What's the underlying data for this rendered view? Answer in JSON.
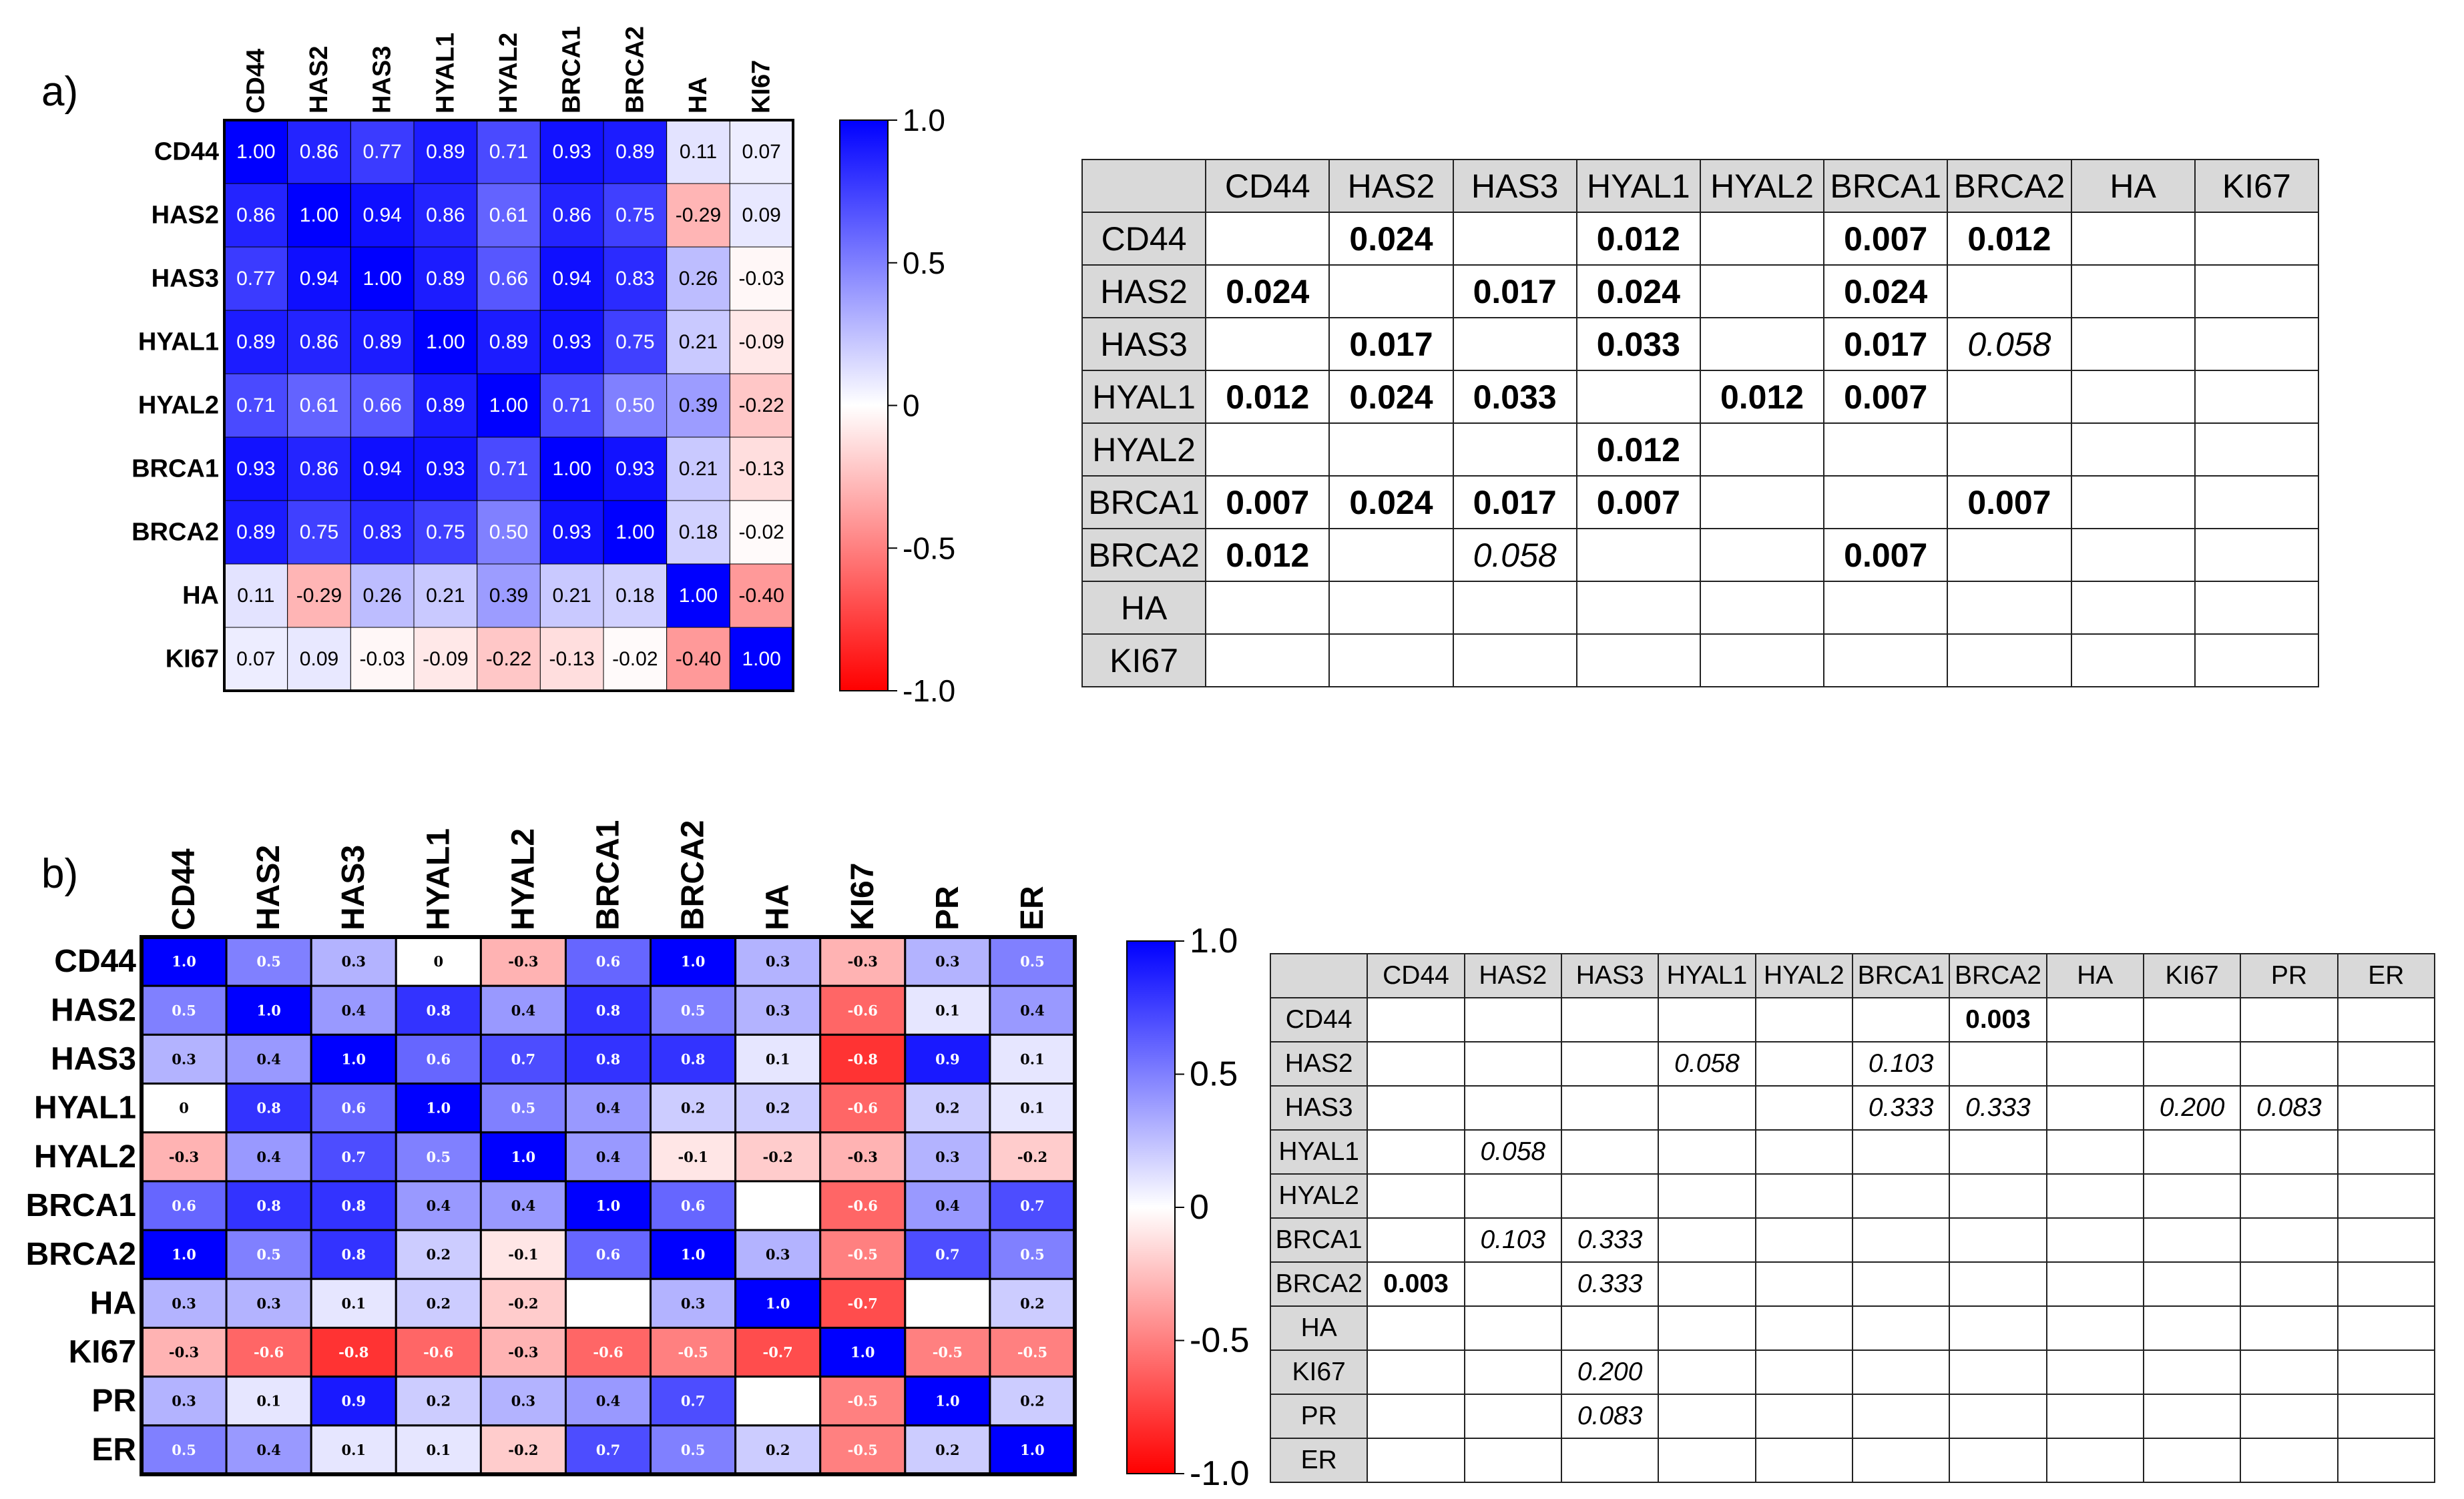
{
  "chart_data": [
    {
      "type": "heatmap",
      "panel_label": "a)",
      "title": "",
      "row_labels": [
        "CD44",
        "HAS2",
        "HAS3",
        "HYAL1",
        "HYAL2",
        "BRCA1",
        "BRCA2",
        "HA",
        "KI67"
      ],
      "col_labels": [
        "CD44",
        "HAS2",
        "HAS3",
        "HYAL1",
        "HYAL2",
        "BRCA1",
        "BRCA2",
        "HA",
        "KI67"
      ],
      "values": [
        [
          "1.00",
          "0.86",
          "0.77",
          "0.89",
          "0.71",
          "0.93",
          "0.89",
          "0.11",
          "0.07"
        ],
        [
          "0.86",
          "1.00",
          "0.94",
          "0.86",
          "0.61",
          "0.86",
          "0.75",
          "-0.29",
          "0.09"
        ],
        [
          "0.77",
          "0.94",
          "1.00",
          "0.89",
          "0.66",
          "0.94",
          "0.83",
          "0.26",
          "-0.03"
        ],
        [
          "0.89",
          "0.86",
          "0.89",
          "1.00",
          "0.89",
          "0.93",
          "0.75",
          "0.21",
          "-0.09"
        ],
        [
          "0.71",
          "0.61",
          "0.66",
          "0.89",
          "1.00",
          "0.71",
          "0.50",
          "0.39",
          "-0.22"
        ],
        [
          "0.93",
          "0.86",
          "0.94",
          "0.93",
          "0.71",
          "1.00",
          "0.93",
          "0.21",
          "-0.13"
        ],
        [
          "0.89",
          "0.75",
          "0.83",
          "0.75",
          "0.50",
          "0.93",
          "1.00",
          "0.18",
          "-0.02"
        ],
        [
          "0.11",
          "-0.29",
          "0.26",
          "0.21",
          "0.39",
          "0.21",
          "0.18",
          "1.00",
          "-0.40"
        ],
        [
          "0.07",
          "0.09",
          "-0.03",
          "-0.09",
          "-0.22",
          "-0.13",
          "-0.02",
          "-0.40",
          "1.00"
        ]
      ],
      "colorbar": {
        "range": [
          -1.0,
          1.0
        ],
        "ticks": [
          "1.0",
          "0.5",
          "0",
          "-0.5",
          "-1.0"
        ],
        "colors": {
          "negative": "#ff0000",
          "zero": "#ffffff",
          "positive": "#0000ff"
        }
      }
    },
    {
      "type": "heatmap",
      "panel_label": "b)",
      "title": "",
      "row_labels": [
        "CD44",
        "HAS2",
        "HAS3",
        "HYAL1",
        "HYAL2",
        "BRCA1",
        "BRCA2",
        "HA",
        "KI67",
        "PR",
        "ER"
      ],
      "col_labels": [
        "CD44",
        "HAS2",
        "HAS3",
        "HYAL1",
        "HYAL2",
        "BRCA1",
        "BRCA2",
        "HA",
        "KI67",
        "PR",
        "ER"
      ],
      "values": [
        [
          "1.0",
          "0.5",
          "0.3",
          "0",
          "-0.3",
          "0.6",
          "1.0",
          "0.3",
          "-0.3",
          "0.3",
          "0.5"
        ],
        [
          "0.5",
          "1.0",
          "0.4",
          "0.8",
          "0.4",
          "0.8",
          "0.5",
          "0.3",
          "-0.6",
          "0.1",
          "0.4"
        ],
        [
          "0.3",
          "0.4",
          "1.0",
          "0.6",
          "0.7",
          "0.8",
          "0.8",
          "0.1",
          "-0.8",
          "0.9",
          "0.1"
        ],
        [
          "0",
          "0.8",
          "0.6",
          "1.0",
          "0.5",
          "0.4",
          "0.2",
          "0.2",
          "-0.6",
          "0.2",
          "0.1"
        ],
        [
          "-0.3",
          "0.4",
          "0.7",
          "0.5",
          "1.0",
          "0.4",
          "-0.1",
          "-0.2",
          "-0.3",
          "0.3",
          "-0.2"
        ],
        [
          "0.6",
          "0.8",
          "0.8",
          "0.4",
          "0.4",
          "1.0",
          "0.6",
          "",
          "-0.6",
          "0.4",
          "0.7"
        ],
        [
          "1.0",
          "0.5",
          "0.8",
          "0.2",
          "-0.1",
          "0.6",
          "1.0",
          "0.3",
          "-0.5",
          "0.7",
          "0.5"
        ],
        [
          "0.3",
          "0.3",
          "0.1",
          "0.2",
          "-0.2",
          "",
          "0.3",
          "1.0",
          "-0.7",
          "",
          "0.2"
        ],
        [
          "-0.3",
          "-0.6",
          "-0.8",
          "-0.6",
          "-0.3",
          "-0.6",
          "-0.5",
          "-0.7",
          "1.0",
          "-0.5",
          "-0.5"
        ],
        [
          "0.3",
          "0.1",
          "0.9",
          "0.2",
          "0.3",
          "0.4",
          "0.7",
          "",
          "-0.5",
          "1.0",
          "0.2"
        ],
        [
          "0.5",
          "0.4",
          "0.1",
          "0.1",
          "-0.2",
          "0.7",
          "0.5",
          "0.2",
          "-0.5",
          "0.2",
          "1.0"
        ]
      ],
      "colorbar": {
        "range": [
          -1.0,
          1.0
        ],
        "ticks": [
          "1.0",
          "0.5",
          "0",
          "-0.5",
          "-1.0"
        ],
        "colors": {
          "negative": "#ff0000",
          "zero": "#ffffff",
          "positive": "#0000ff"
        }
      }
    },
    {
      "type": "table",
      "panel_label": "a)",
      "title": "",
      "col_headers": [
        "",
        "CD44",
        "HAS2",
        "HAS3",
        "HYAL1",
        "HYAL2",
        "BRCA1",
        "BRCA2",
        "HA",
        "KI67"
      ],
      "rows": [
        {
          "label": "CD44",
          "cells": [
            "",
            "0.024",
            "",
            "0.012",
            "",
            "0.007",
            "0.012",
            "",
            ""
          ]
        },
        {
          "label": "HAS2",
          "cells": [
            "0.024",
            "",
            "0.017",
            "0.024",
            "",
            "0.024",
            "",
            "",
            ""
          ]
        },
        {
          "label": "HAS3",
          "cells": [
            "",
            "0.017",
            "",
            "0.033",
            "",
            "0.017",
            "0.058",
            "",
            ""
          ]
        },
        {
          "label": "HYAL1",
          "cells": [
            "0.012",
            "0.024",
            "0.033",
            "",
            "0.012",
            "0.007",
            "",
            "",
            ""
          ]
        },
        {
          "label": "HYAL2",
          "cells": [
            "",
            "",
            "",
            "0.012",
            "",
            "",
            "",
            "",
            ""
          ]
        },
        {
          "label": "BRCA1",
          "cells": [
            "0.007",
            "0.024",
            "0.017",
            "0.007",
            "",
            "",
            "0.007",
            "",
            ""
          ]
        },
        {
          "label": "BRCA2",
          "cells": [
            "0.012",
            "",
            "0.058",
            "",
            "",
            "0.007",
            "",
            "",
            ""
          ]
        },
        {
          "label": "HA",
          "cells": [
            "",
            "",
            "",
            "",
            "",
            "",
            "",
            "",
            ""
          ]
        },
        {
          "label": "KI67",
          "cells": [
            "",
            "",
            "",
            "",
            "",
            "",
            "",
            "",
            ""
          ]
        }
      ],
      "nonsignificant_values": [
        "0.058"
      ]
    },
    {
      "type": "table",
      "panel_label": "b)",
      "title": "",
      "col_headers": [
        "",
        "CD44",
        "HAS2",
        "HAS3",
        "HYAL1",
        "HYAL2",
        "BRCA1",
        "BRCA2",
        "HA",
        "KI67",
        "PR",
        "ER"
      ],
      "rows": [
        {
          "label": "CD44",
          "cells": [
            "",
            "",
            "",
            "",
            "",
            "",
            "0.003",
            "",
            "",
            "",
            ""
          ]
        },
        {
          "label": "HAS2",
          "cells": [
            "",
            "",
            "",
            "0.058",
            "",
            "0.103",
            "",
            "",
            "",
            "",
            ""
          ]
        },
        {
          "label": "HAS3",
          "cells": [
            "",
            "",
            "",
            "",
            "",
            "0.333",
            "0.333",
            "",
            "0.200",
            "0.083",
            ""
          ]
        },
        {
          "label": "HYAL1",
          "cells": [
            "",
            "0.058",
            "",
            "",
            "",
            "",
            "",
            "",
            "",
            "",
            ""
          ]
        },
        {
          "label": "HYAL2",
          "cells": [
            "",
            "",
            "",
            "",
            "",
            "",
            "",
            "",
            "",
            "",
            ""
          ]
        },
        {
          "label": "BRCA1",
          "cells": [
            "",
            "0.103",
            "0.333",
            "",
            "",
            "",
            "",
            "",
            "",
            "",
            ""
          ]
        },
        {
          "label": "BRCA2",
          "cells": [
            "0.003",
            "",
            "0.333",
            "",
            "",
            "",
            "",
            "",
            "",
            "",
            ""
          ]
        },
        {
          "label": "HA",
          "cells": [
            "",
            "",
            "",
            "",
            "",
            "",
            "",
            "",
            "",
            "",
            ""
          ]
        },
        {
          "label": "KI67",
          "cells": [
            "",
            "",
            "0.200",
            "",
            "",
            "",
            "",
            "",
            "",
            "",
            ""
          ]
        },
        {
          "label": "PR",
          "cells": [
            "",
            "",
            "0.083",
            "",
            "",
            "",
            "",
            "",
            "",
            "",
            ""
          ]
        },
        {
          "label": "ER",
          "cells": [
            "",
            "",
            "",
            "",
            "",
            "",
            "",
            "",
            "",
            "",
            ""
          ]
        }
      ],
      "nonsignificant_values": [
        "0.058",
        "0.103",
        "0.333",
        "0.200",
        "0.083"
      ]
    }
  ]
}
